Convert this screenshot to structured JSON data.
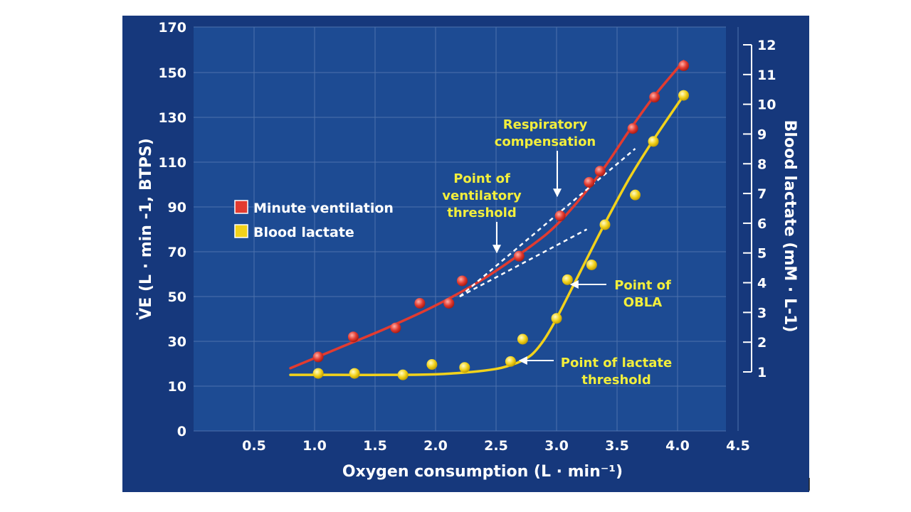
{
  "chart_data": {
    "type": "line",
    "title": "",
    "xlabel": "Oxygen consumption (L · min⁻¹)",
    "ylabel": "V̇E (L · min -1, BTPS)",
    "ylabel2": "Blood lactate (mM · L-1)",
    "xlim": [
      0,
      4.5
    ],
    "ylim": [
      0,
      170
    ],
    "y2lim": [
      0.5,
      12
    ],
    "x_ticks": [
      "0.5",
      "1.0",
      "1.5",
      "2.0",
      "2.5",
      "3.0",
      "3.5",
      "4.0",
      "4.5"
    ],
    "y_ticks": [
      "0",
      "10",
      "30",
      "50",
      "70",
      "90",
      "110",
      "130",
      "150",
      "170"
    ],
    "y2_ticks": [
      "1",
      "2",
      "3",
      "4",
      "5",
      "6",
      "7",
      "8",
      "9",
      "10",
      "11",
      "12"
    ],
    "grid": true,
    "legend_position": "left",
    "series": [
      {
        "name": "Minute ventilation",
        "axis": "left",
        "color": "#e23b30",
        "x": [
          1.03,
          1.32,
          1.67,
          1.87,
          2.11,
          2.22,
          2.69,
          3.03,
          3.27,
          3.36,
          3.63,
          3.81,
          4.05
        ],
        "y": [
          23,
          32,
          36,
          47,
          47,
          57,
          68,
          86,
          101,
          106,
          125,
          139,
          153
        ],
        "fit_x": [
          0.8,
          1.2,
          1.6,
          2.0,
          2.4,
          2.8,
          3.0,
          3.2,
          3.4,
          3.6,
          3.8,
          4.05
        ],
        "fit_y": [
          18,
          27,
          36,
          46,
          58,
          73,
          82,
          94,
          108,
          124,
          139,
          155
        ]
      },
      {
        "name": "Blood lactate",
        "axis": "right",
        "color": "#f2d21b",
        "x": [
          1.03,
          1.33,
          1.73,
          1.97,
          2.24,
          2.62,
          2.72,
          3.0,
          3.09,
          3.29,
          3.4,
          3.65,
          3.8,
          4.05
        ],
        "y": [
          0.95,
          0.95,
          0.9,
          1.25,
          1.15,
          1.35,
          2.1,
          2.8,
          4.1,
          4.6,
          5.95,
          6.95,
          8.75,
          10.3
        ],
        "fit_x": [
          0.8,
          1.2,
          1.6,
          2.0,
          2.3,
          2.5,
          2.6,
          2.7,
          2.8,
          2.9,
          3.0,
          3.2,
          3.4,
          3.6,
          3.8,
          4.05
        ],
        "fit_y": [
          0.9,
          0.9,
          0.9,
          0.92,
          1.0,
          1.1,
          1.2,
          1.35,
          1.6,
          2.1,
          2.8,
          4.4,
          6.0,
          7.5,
          8.8,
          10.3
        ]
      }
    ],
    "extrapolations": [
      {
        "x": [
          2.2,
          3.65
        ],
        "y": [
          50,
          116
        ]
      },
      {
        "x": [
          2.2,
          3.25
        ],
        "y": [
          50,
          80
        ]
      }
    ],
    "annotations": [
      {
        "lines": [
          "Respiratory",
          "compensation"
        ]
      },
      {
        "lines": [
          "Point of",
          "ventilatory",
          "threshold"
        ]
      },
      {
        "lines": [
          "Point of",
          "OBLA"
        ]
      },
      {
        "lines": [
          "Point of lactate",
          "threshold"
        ]
      }
    ],
    "legend": [
      {
        "label": "Minute ventilation",
        "color": "#e23b30"
      },
      {
        "label": "Blood lactate",
        "color": "#f2d21b"
      }
    ],
    "colors": {
      "background": "#16387c",
      "plot": "#1d4b93",
      "grid": "#4d72ad"
    }
  }
}
